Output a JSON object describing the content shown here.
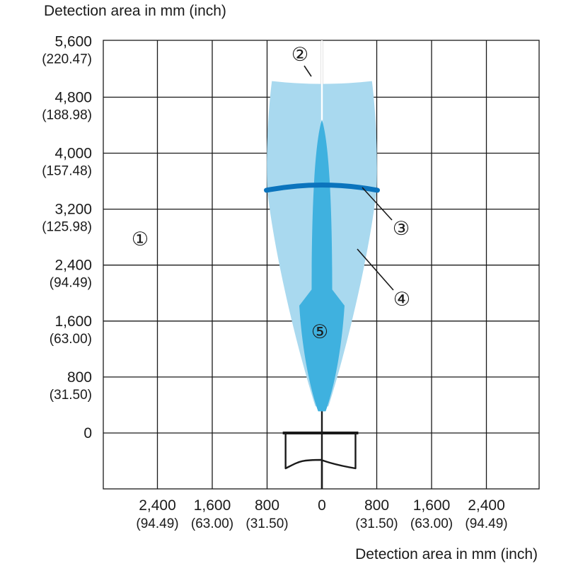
{
  "chart_data": {
    "type": "diagram",
    "y_axis_title": "Detection area in mm (inch)",
    "x_axis_title": "Detection area in mm (inch)",
    "y_ticks": [
      {
        "mm": "5,600",
        "inch": "(220.47)",
        "value": 5600
      },
      {
        "mm": "4,800",
        "inch": "(188.98)",
        "value": 4800
      },
      {
        "mm": "4,000",
        "inch": "(157.48)",
        "value": 4000
      },
      {
        "mm": "3,200",
        "inch": "(125.98)",
        "value": 3200
      },
      {
        "mm": "2,400",
        "inch": "(94.49)",
        "value": 2400
      },
      {
        "mm": "1,600",
        "inch": "(63.00)",
        "value": 1600
      },
      {
        "mm": "800",
        "inch": "(31.50)",
        "value": 800
      },
      {
        "mm": "0",
        "inch": "",
        "value": 0
      }
    ],
    "x_ticks": [
      {
        "mm": "2,400",
        "inch": "(94.49)",
        "value": -2400
      },
      {
        "mm": "1,600",
        "inch": "(63.00)",
        "value": -1600
      },
      {
        "mm": "800",
        "inch": "(31.50)",
        "value": -800
      },
      {
        "mm": "0",
        "inch": "",
        "value": 0
      },
      {
        "mm": "800",
        "inch": "(31.50)",
        "value": 800
      },
      {
        "mm": "1,600",
        "inch": "(63.00)",
        "value": 1600
      },
      {
        "mm": "2,400",
        "inch": "(94.49)",
        "value": 2400
      }
    ],
    "x_range": [
      -3100,
      3100
    ],
    "y_range": [
      -800,
      5600
    ],
    "grid": true,
    "callouts": [
      "①",
      "②",
      "③",
      "④",
      "⑤"
    ],
    "colors": {
      "detection_field": "#a9d9ef",
      "arrow": "#3fb1df",
      "distance_band": "#0b74bd",
      "grid": "#1a1a1a"
    }
  }
}
